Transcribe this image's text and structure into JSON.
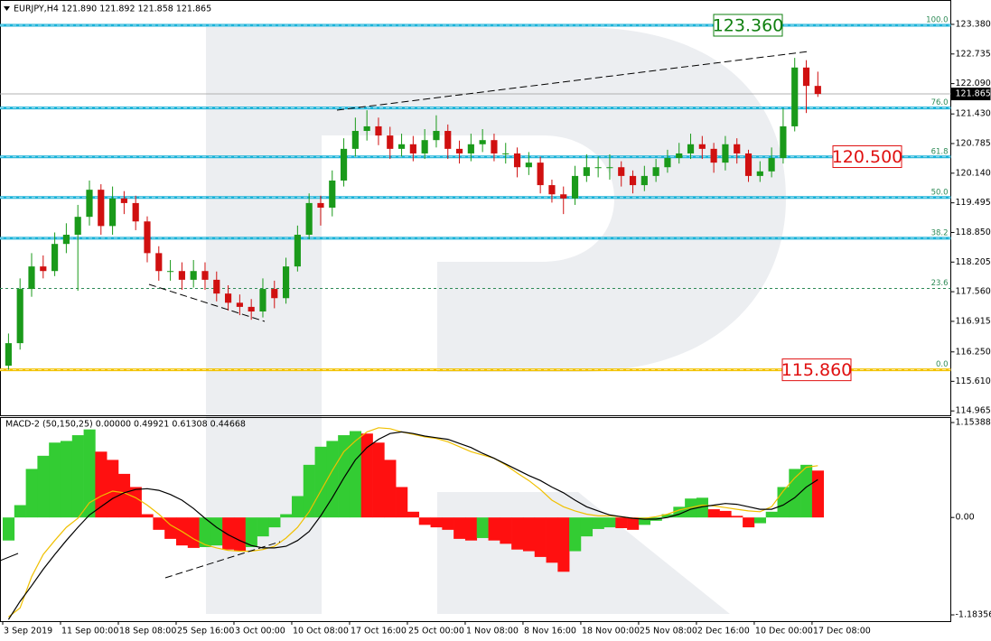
{
  "chart_data": [
    {
      "type": "candlestick",
      "title": "EURJPY,H4  121.890 121.892 121.858 121.865",
      "xlim": [
        0,
        82
      ],
      "open": [
        115.95,
        116.44,
        117.62,
        118.11,
        118.01,
        118.6,
        118.8,
        119.19,
        119.78,
        118.99,
        119.59,
        119.49,
        119.09,
        118.4,
        118.01,
        118.01,
        117.82,
        118.01,
        117.82,
        117.52,
        117.32,
        117.23,
        117.13,
        117.62,
        117.42,
        118.11,
        118.8,
        119.49,
        119.39,
        119.98,
        120.67,
        121.06,
        121.16,
        120.96,
        120.67,
        120.77,
        120.57,
        120.86,
        121.06,
        120.67,
        120.57,
        120.77,
        120.86,
        120.57,
        120.57,
        120.27,
        120.37,
        119.88,
        119.68,
        119.59,
        120.08,
        120.27,
        120.27,
        120.27,
        120.08,
        119.88,
        120.08,
        120.27,
        120.47,
        120.57,
        120.77,
        120.67,
        120.37,
        120.77,
        120.57,
        120.08,
        120.18,
        120.47,
        121.16,
        122.44,
        122.04
      ],
      "high": [
        116.65,
        117.85,
        118.4,
        118.35,
        118.85,
        119.05,
        119.45,
        119.98,
        119.9,
        119.85,
        119.75,
        119.65,
        119.2,
        118.55,
        118.25,
        118.2,
        118.25,
        118.2,
        118.0,
        117.7,
        117.5,
        117.4,
        117.85,
        117.8,
        118.3,
        119.0,
        119.7,
        119.65,
        120.2,
        120.9,
        121.35,
        121.51,
        121.35,
        121.15,
        121.0,
        120.95,
        121.1,
        121.4,
        121.2,
        120.85,
        121.0,
        121.1,
        121.0,
        120.8,
        120.7,
        120.6,
        120.5,
        120.0,
        119.85,
        120.3,
        120.55,
        120.5,
        120.55,
        120.4,
        120.2,
        120.3,
        120.45,
        120.65,
        120.8,
        121.0,
        120.95,
        120.8,
        120.95,
        120.9,
        120.65,
        120.4,
        120.7,
        121.55,
        122.65,
        122.6,
        122.35
      ],
      "low": [
        115.86,
        116.3,
        117.45,
        117.85,
        117.9,
        118.4,
        117.58,
        119.0,
        118.8,
        118.8,
        119.25,
        118.9,
        118.2,
        117.8,
        117.8,
        117.6,
        117.65,
        117.6,
        117.35,
        117.15,
        117.05,
        116.95,
        117.0,
        117.2,
        117.3,
        118.0,
        118.7,
        119.0,
        119.2,
        119.85,
        120.5,
        120.85,
        120.75,
        120.45,
        120.5,
        120.4,
        120.45,
        120.7,
        120.45,
        120.35,
        120.4,
        120.6,
        120.4,
        120.35,
        120.05,
        120.1,
        119.7,
        119.5,
        119.25,
        119.45,
        119.95,
        120.05,
        120.0,
        119.85,
        119.7,
        119.75,
        119.95,
        120.15,
        120.35,
        120.45,
        120.45,
        120.15,
        120.2,
        120.35,
        119.95,
        119.95,
        120.05,
        120.35,
        121.05,
        121.45,
        121.8
      ],
      "close": [
        116.44,
        117.62,
        118.11,
        118.01,
        118.6,
        118.8,
        119.19,
        119.78,
        118.99,
        119.59,
        119.49,
        119.09,
        118.4,
        118.01,
        118.01,
        117.82,
        118.01,
        117.82,
        117.52,
        117.32,
        117.23,
        117.13,
        117.62,
        117.42,
        118.11,
        118.8,
        119.49,
        119.39,
        119.98,
        120.67,
        121.06,
        121.16,
        120.96,
        120.67,
        120.77,
        120.57,
        120.86,
        121.06,
        120.67,
        120.57,
        120.77,
        120.86,
        120.57,
        120.57,
        120.27,
        120.37,
        119.88,
        119.68,
        119.59,
        120.08,
        120.27,
        120.27,
        120.27,
        120.08,
        119.88,
        120.08,
        120.27,
        120.47,
        120.57,
        120.77,
        120.67,
        120.37,
        120.77,
        120.57,
        120.08,
        120.18,
        120.47,
        121.16,
        122.44,
        122.04,
        121.865
      ],
      "bull_color": "#1a9a1a",
      "bear_color": "#d01010",
      "ylim": [
        114.87,
        123.91
      ],
      "yticks": [
        {
          "value": 123.38,
          "label": "123.380"
        },
        122.735,
        {
          "value": 122.09,
          "label": "122.090"
        },
        {
          "value": 121.43,
          "label": "121.430"
        },
        120.785,
        {
          "value": 120.14,
          "label": "120.140"
        },
        119.495,
        {
          "value": 118.85,
          "label": "118.850"
        },
        118.205,
        {
          "value": 117.56,
          "label": "117.560"
        },
        116.915,
        {
          "value": 116.25,
          "label": "116.250"
        },
        {
          "value": 115.61,
          "label": "115.610"
        },
        114.965
      ],
      "levels": [
        {
          "value": 123.36,
          "label": "100.0",
          "color": "#1ab2d8"
        },
        {
          "value": 121.56,
          "label": "76.0",
          "color": "#1ab2d8"
        },
        {
          "value": 120.495,
          "label": "61.8",
          "color": "#1ab2d8"
        },
        {
          "value": 119.61,
          "label": "50.0",
          "color": "#1ab2d8"
        },
        {
          "value": 118.725,
          "label": "38.2",
          "color": "#1ab2d8"
        },
        {
          "value": 117.63,
          "label": "23.6",
          "color": "#2e8b57",
          "dashed": true
        },
        {
          "value": 115.86,
          "label": "0.0",
          "color": "#f2c200"
        }
      ],
      "annotations": [
        {
          "value": 123.36,
          "label": "123.360",
          "color": "#108010"
        },
        {
          "value": 120.5,
          "label": "120.500",
          "color": "#e01010"
        },
        {
          "value": 115.86,
          "label": "115.860",
          "color": "#e01010"
        }
      ],
      "last_price": {
        "value": 121.865,
        "label": "121.865"
      }
    },
    {
      "type": "macd",
      "title": "MACD-2 (50,150,25) 0.00000 0.49921 0.61308 0.44668",
      "xlim": [
        0,
        82
      ],
      "histogram": [
        -0.28,
        0.15,
        0.59,
        0.75,
        0.91,
        0.93,
        1.0,
        1.07,
        0.8,
        0.7,
        0.53,
        0.37,
        0.04,
        -0.15,
        -0.26,
        -0.34,
        -0.37,
        -0.36,
        -0.34,
        -0.39,
        -0.41,
        -0.36,
        -0.23,
        -0.12,
        0.04,
        0.26,
        0.64,
        0.86,
        0.93,
        1.0,
        1.05,
        1.02,
        0.91,
        0.7,
        0.37,
        0.07,
        -0.09,
        -0.12,
        -0.15,
        -0.26,
        -0.28,
        -0.25,
        -0.28,
        -0.32,
        -0.39,
        -0.41,
        -0.48,
        -0.55,
        -0.66,
        -0.41,
        -0.23,
        -0.14,
        -0.12,
        -0.13,
        -0.15,
        -0.09,
        -0.04,
        0.04,
        0.13,
        0.23,
        0.24,
        0.1,
        0.08,
        0.02,
        -0.12,
        -0.07,
        0.07,
        0.37,
        0.59,
        0.64,
        0.57
      ],
      "up_color": "#33cc33",
      "down_color": "#ff1010",
      "signal": [
        -1.21,
        -1.1,
        -0.72,
        -0.45,
        -0.28,
        -0.12,
        -0.01,
        0.18,
        0.26,
        0.32,
        0.3,
        0.24,
        0.15,
        0.04,
        -0.09,
        -0.17,
        -0.26,
        -0.33,
        -0.37,
        -0.4,
        -0.41,
        -0.41,
        -0.39,
        -0.35,
        -0.25,
        -0.12,
        0.07,
        0.32,
        0.57,
        0.8,
        0.93,
        1.04,
        1.09,
        1.08,
        1.04,
        1.01,
        0.98,
        0.96,
        0.92,
        0.86,
        0.8,
        0.76,
        0.72,
        0.64,
        0.54,
        0.45,
        0.34,
        0.21,
        0.13,
        0.08,
        0.04,
        0.02,
        0.02,
        0.01,
        -0.01,
        -0.01,
        0.01,
        0.04,
        0.09,
        0.12,
        0.15,
        0.14,
        0.12,
        0.1,
        0.08,
        0.07,
        0.13,
        0.32,
        0.48,
        0.61,
        0.63
      ],
      "signal_color": "#f0c000",
      "main": [
        -1.24,
        -1.02,
        -0.83,
        -0.63,
        -0.45,
        -0.28,
        -0.12,
        0.03,
        0.13,
        0.23,
        0.3,
        0.34,
        0.35,
        0.33,
        0.28,
        0.21,
        0.11,
        -0.01,
        -0.12,
        -0.21,
        -0.28,
        -0.34,
        -0.37,
        -0.37,
        -0.35,
        -0.28,
        -0.17,
        0.02,
        0.24,
        0.48,
        0.7,
        0.85,
        0.95,
        1.02,
        1.04,
        1.02,
        0.99,
        0.97,
        0.95,
        0.9,
        0.85,
        0.78,
        0.72,
        0.65,
        0.58,
        0.51,
        0.45,
        0.37,
        0.3,
        0.21,
        0.13,
        0.08,
        0.03,
        0.01,
        -0.01,
        -0.02,
        -0.02,
        0.0,
        0.04,
        0.1,
        0.13,
        0.15,
        0.17,
        0.16,
        0.13,
        0.1,
        0.1,
        0.15,
        0.24,
        0.37,
        0.46
      ],
      "main_color": "#000000",
      "ylim": [
        -1.26,
        1.22
      ],
      "yticks": [
        1.15388,
        {
          "value": 0,
          "label": "0.00"
        },
        -1.18356
      ],
      "xticks": [
        {
          "value": 0,
          "label": "3 Sep 2019"
        },
        {
          "value": 5,
          "label": "11 Sep 00:00"
        },
        {
          "value": 10,
          "label": "18 Sep 08:00"
        },
        {
          "value": 15,
          "label": "25 Sep 16:00"
        },
        {
          "value": 20,
          "label": "3 Oct 00:00"
        },
        {
          "value": 25,
          "label": "10 Oct 08:00"
        },
        {
          "value": 30,
          "label": "17 Oct 16:00"
        },
        {
          "value": 35,
          "label": "25 Oct 00:00"
        },
        {
          "value": 40,
          "label": "1 Nov 08:00"
        },
        {
          "value": 45,
          "label": "8 Nov 16:00"
        },
        {
          "value": 50,
          "label": "18 Nov 00:00"
        },
        {
          "value": 55,
          "label": "25 Nov 08:00"
        },
        {
          "value": 60,
          "label": "2 Dec 16:00"
        },
        {
          "value": 65,
          "label": "10 Dec 00:00"
        },
        {
          "value": 70,
          "label": "17 Dec 08:00"
        }
      ]
    }
  ]
}
